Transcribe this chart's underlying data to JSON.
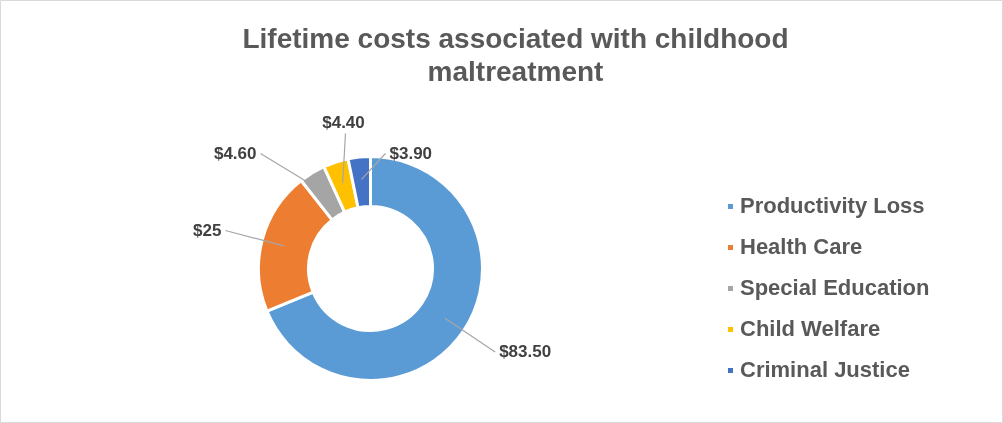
{
  "chart_data": {
    "type": "donut",
    "title": "Lifetime costs associated with childhood maltreatment",
    "categories": [
      "Productivity Loss",
      "Health Care",
      "Special Education",
      "Child Welfare",
      "Criminal Justice"
    ],
    "values": [
      83.5,
      25,
      4.6,
      4.4,
      3.9
    ],
    "colors": [
      "#5b9bd5",
      "#ed7d31",
      "#a5a5a5",
      "#ffc000",
      "#4472c4"
    ],
    "value_labels": [
      "$83.50",
      "$25",
      "$4.60",
      "$4.40",
      "$3.90"
    ],
    "legend": "right"
  }
}
